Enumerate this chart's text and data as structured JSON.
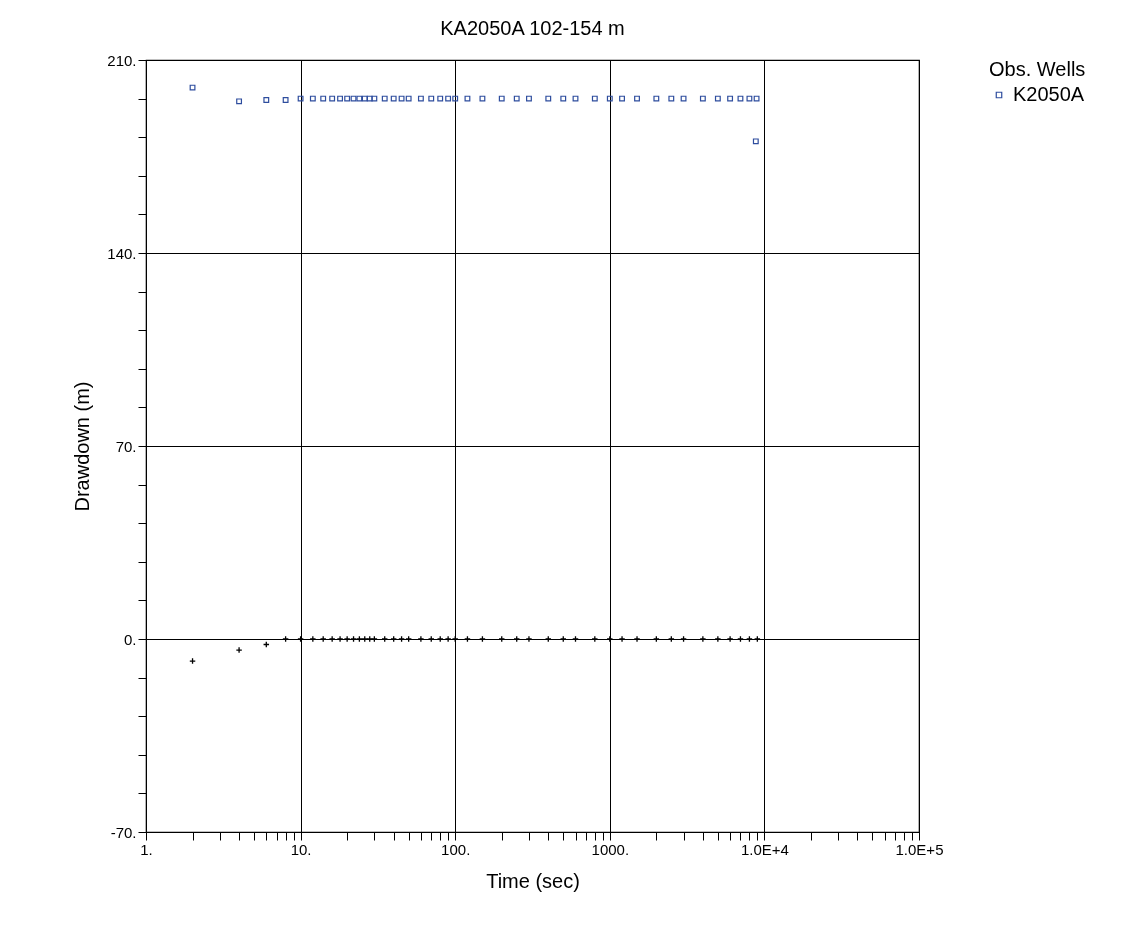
{
  "chart_data": {
    "type": "scatter",
    "title": "KA2050A 102-154 m",
    "xlabel": "Time (sec)",
    "ylabel": "Drawdown (m)",
    "legend_title": "Obs. Wells",
    "log": "x",
    "grid": true,
    "legend": "top right",
    "xlim": [
      1,
      100000
    ],
    "ylim": [
      -70,
      210
    ],
    "xticks": [
      {
        "value": 1,
        "label": "1."
      },
      {
        "value": 2,
        "label": null
      },
      {
        "value": 3,
        "label": null
      },
      {
        "value": 4,
        "label": null
      },
      {
        "value": 5,
        "label": null
      },
      {
        "value": 6,
        "label": null
      },
      {
        "value": 7,
        "label": null
      },
      {
        "value": 8,
        "label": null
      },
      {
        "value": 9,
        "label": null
      },
      {
        "value": 10,
        "label": "10."
      },
      {
        "value": 20,
        "label": null
      },
      {
        "value": 30,
        "label": null
      },
      {
        "value": 40,
        "label": null
      },
      {
        "value": 50,
        "label": null
      },
      {
        "value": 60,
        "label": null
      },
      {
        "value": 70,
        "label": null
      },
      {
        "value": 80,
        "label": null
      },
      {
        "value": 90,
        "label": null
      },
      {
        "value": 100,
        "label": "100."
      },
      {
        "value": 200,
        "label": null
      },
      {
        "value": 300,
        "label": null
      },
      {
        "value": 400,
        "label": null
      },
      {
        "value": 500,
        "label": null
      },
      {
        "value": 600,
        "label": null
      },
      {
        "value": 700,
        "label": null
      },
      {
        "value": 800,
        "label": null
      },
      {
        "value": 900,
        "label": null
      },
      {
        "value": 1000,
        "label": "1000."
      },
      {
        "value": 2000,
        "label": null
      },
      {
        "value": 3000,
        "label": null
      },
      {
        "value": 4000,
        "label": null
      },
      {
        "value": 5000,
        "label": null
      },
      {
        "value": 6000,
        "label": null
      },
      {
        "value": 7000,
        "label": null
      },
      {
        "value": 8000,
        "label": null
      },
      {
        "value": 9000,
        "label": null
      },
      {
        "value": 10000,
        "label": "1.0E+4"
      },
      {
        "value": 20000,
        "label": null
      },
      {
        "value": 30000,
        "label": null
      },
      {
        "value": 40000,
        "label": null
      },
      {
        "value": 50000,
        "label": null
      },
      {
        "value": 60000,
        "label": null
      },
      {
        "value": 70000,
        "label": null
      },
      {
        "value": 80000,
        "label": null
      },
      {
        "value": 90000,
        "label": null
      },
      {
        "value": 100000,
        "label": "1.0E+5"
      }
    ],
    "yticks": [
      {
        "value": -70,
        "label": "-70."
      },
      {
        "value": -56,
        "label": null
      },
      {
        "value": -42,
        "label": null
      },
      {
        "value": -28,
        "label": null
      },
      {
        "value": -14,
        "label": null
      },
      {
        "value": 0,
        "label": "0."
      },
      {
        "value": 14,
        "label": null
      },
      {
        "value": 28,
        "label": null
      },
      {
        "value": 42,
        "label": null
      },
      {
        "value": 56,
        "label": null
      },
      {
        "value": 70,
        "label": "70."
      },
      {
        "value": 84,
        "label": null
      },
      {
        "value": 98,
        "label": null
      },
      {
        "value": 112,
        "label": null
      },
      {
        "value": 126,
        "label": null
      },
      {
        "value": 140,
        "label": "140."
      },
      {
        "value": 154,
        "label": null
      },
      {
        "value": 168,
        "label": null
      },
      {
        "value": 182,
        "label": null
      },
      {
        "value": 196,
        "label": null
      },
      {
        "value": 210,
        "label": "210."
      }
    ],
    "series": [
      {
        "name": "K2050A",
        "color": "#2e4d9e",
        "marker": "square",
        "x": [
          2,
          4,
          6,
          8,
          10,
          12,
          14,
          16,
          18,
          20,
          22,
          24,
          26,
          28,
          30,
          35,
          40,
          45,
          50,
          60,
          70,
          80,
          90,
          100,
          120,
          150,
          200,
          250,
          300,
          400,
          500,
          600,
          800,
          1000,
          1200,
          1500,
          2000,
          2500,
          3000,
          4000,
          5000,
          6000,
          7000,
          8000,
          8900,
          8800
        ],
        "values": [
          200,
          195,
          195.5,
          195.5,
          196,
          196,
          196,
          196,
          196,
          196,
          196,
          196,
          196,
          196,
          196,
          196,
          196,
          196,
          196,
          196,
          196,
          196,
          196,
          196,
          196,
          196,
          196,
          196,
          196,
          196,
          196,
          196,
          196,
          196,
          196,
          196,
          196,
          196,
          196,
          196,
          196,
          196,
          196,
          196,
          196,
          180.5
        ]
      },
      {
        "color": "#000000",
        "marker": "cross",
        "x": [
          2,
          4,
          6,
          8,
          10,
          12,
          14,
          16,
          18,
          20,
          22,
          24,
          26,
          28,
          30,
          35,
          40,
          45,
          50,
          60,
          70,
          80,
          90,
          100,
          120,
          150,
          200,
          250,
          300,
          400,
          500,
          600,
          800,
          1000,
          1200,
          1500,
          2000,
          2500,
          3000,
          4000,
          5000,
          6000,
          7000,
          8000,
          9000
        ],
        "values": [
          -8,
          -4,
          -2,
          0,
          0,
          0,
          0,
          0,
          0,
          0,
          0,
          0,
          0,
          0,
          0,
          0,
          0,
          0,
          0,
          0,
          0,
          0,
          0,
          0,
          0,
          0,
          0,
          0,
          0,
          0,
          0,
          0,
          0,
          0,
          0,
          0,
          0,
          0,
          0,
          0,
          0,
          0,
          0,
          0,
          0
        ]
      }
    ]
  }
}
